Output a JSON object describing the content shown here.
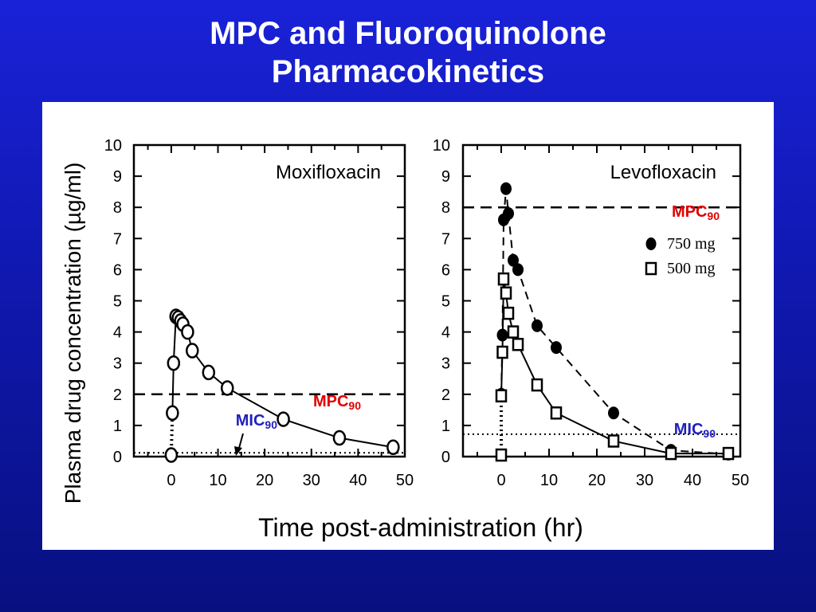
{
  "slide": {
    "title_line1": "MPC and Fluoroquinolone",
    "title_line2": "Pharmacokinetics"
  },
  "colors": {
    "background": "#1018b0",
    "title": "#ffffff",
    "mpc_label": "#e00000",
    "mic_label": "#2020c0"
  },
  "chart_data": [
    {
      "type": "line",
      "title": "Moxifloxacin",
      "xlabel": "Time post-administration (hr)",
      "ylabel": "Plasma drug concentration (µg/ml)",
      "xlim": [
        -8,
        50
      ],
      "ylim": [
        0,
        10
      ],
      "xticks": [
        "0",
        "10",
        "20",
        "30",
        "40",
        "50"
      ],
      "yticks": [
        "0",
        "1",
        "2",
        "3",
        "4",
        "5",
        "6",
        "7",
        "8",
        "9",
        "10"
      ],
      "series": [
        {
          "marker": "open-circle",
          "line": "solid",
          "x": [
            0,
            0.25,
            0.5,
            1,
            1.5,
            2,
            2.5,
            3.5,
            4.5,
            8,
            12,
            24,
            36,
            47.5
          ],
          "y": [
            0.05,
            1.4,
            3.0,
            4.5,
            4.45,
            4.35,
            4.25,
            4.0,
            3.4,
            2.7,
            2.2,
            1.2,
            0.6,
            0.3
          ],
          "connect_from": 3
        }
      ],
      "reference_lines": [
        {
          "label": "MPC",
          "sub": "90",
          "y": 2.0,
          "style": "dashed"
        },
        {
          "label": "MIC",
          "sub": "90",
          "y": 0.12,
          "style": "dotted"
        }
      ]
    },
    {
      "type": "line",
      "title": "Levofloxacin",
      "xlim": [
        -8,
        50
      ],
      "ylim": [
        0,
        10
      ],
      "xticks": [
        "0",
        "10",
        "20",
        "30",
        "40",
        "50"
      ],
      "yticks": [
        "0",
        "1",
        "2",
        "3",
        "4",
        "5",
        "6",
        "7",
        "8",
        "9",
        "10"
      ],
      "series": [
        {
          "name": "750 mg",
          "marker": "filled-circle",
          "line": "dashed",
          "x": [
            0,
            0,
            0.25,
            0.5,
            1,
            1.5,
            2.5,
            3.5,
            7.5,
            11.5,
            23.5,
            35.5,
            47.5
          ],
          "y": [
            0.05,
            2.0,
            3.9,
            7.6,
            8.6,
            7.8,
            6.3,
            6.0,
            4.2,
            3.5,
            1.4,
            0.2,
            0.08
          ]
        },
        {
          "name": "500 mg",
          "marker": "open-square",
          "line": "solid",
          "x": [
            0,
            0,
            0.25,
            0.5,
            1,
            1.5,
            2.5,
            3.5,
            7.5,
            11.5,
            23.5,
            35.5,
            47.5
          ],
          "y": [
            0.05,
            1.95,
            3.35,
            5.7,
            5.25,
            4.6,
            4.0,
            3.6,
            2.3,
            1.4,
            0.5,
            0.1,
            0.1
          ]
        }
      ],
      "reference_lines": [
        {
          "label": "MPC",
          "sub": "90",
          "y": 8.0,
          "style": "dashed"
        },
        {
          "label": "MIC",
          "sub": "90",
          "y": 0.72,
          "style": "dotted"
        }
      ]
    }
  ]
}
